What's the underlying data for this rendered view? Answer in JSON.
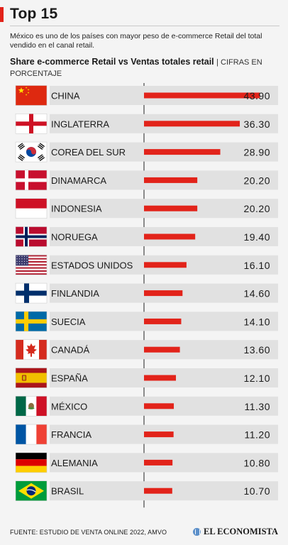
{
  "header": {
    "title": "Top 15",
    "description": "México es uno de los países con mayor peso de e-commerce Retail del total vendido en el canal retail."
  },
  "chart_data": {
    "type": "bar",
    "orientation": "horizontal",
    "title": "Share e-commerce Retail vs Ventas totales retail",
    "subtitle": "| CIFRAS EN PORCENTAJE",
    "categories": [
      "CHINA",
      "INGLATERRA",
      "COREA DEL SUR",
      "DINAMARCA",
      "INDONESIA",
      "NORUEGA",
      "ESTADOS UNIDOS",
      "FINLANDIA",
      "SUECIA",
      "CANADÁ",
      "ESPAÑA",
      "MÉXICO",
      "FRANCIA",
      "ALEMANIA",
      "BRASIL"
    ],
    "flags": [
      "china-flag-icon",
      "england-flag-icon",
      "south-korea-flag-icon",
      "denmark-flag-icon",
      "indonesia-flag-icon",
      "norway-flag-icon",
      "usa-flag-icon",
      "finland-flag-icon",
      "sweden-flag-icon",
      "canada-flag-icon",
      "spain-flag-icon",
      "mexico-flag-icon",
      "france-flag-icon",
      "germany-flag-icon",
      "brazil-flag-icon"
    ],
    "values": [
      43.9,
      36.3,
      28.9,
      20.2,
      20.2,
      19.4,
      16.1,
      14.6,
      14.1,
      13.6,
      12.1,
      11.3,
      11.2,
      10.8,
      10.7
    ],
    "value_labels": [
      "43.90",
      "36.30",
      "28.90",
      "20.20",
      "20.20",
      "19.40",
      "16.10",
      "14.60",
      "14.10",
      "13.60",
      "12.10",
      "11.30",
      "11.20",
      "10.80",
      "10.70"
    ],
    "xlim": [
      0,
      50
    ],
    "grid": false,
    "bar_color": "#e2231a",
    "row_bg_color": "#e1e1e1"
  },
  "footer": {
    "source": "FUENTE: ESTUDIO DE VENTA ONLINE 2022, AMVO",
    "brand": "EL ECONOMISTA"
  }
}
